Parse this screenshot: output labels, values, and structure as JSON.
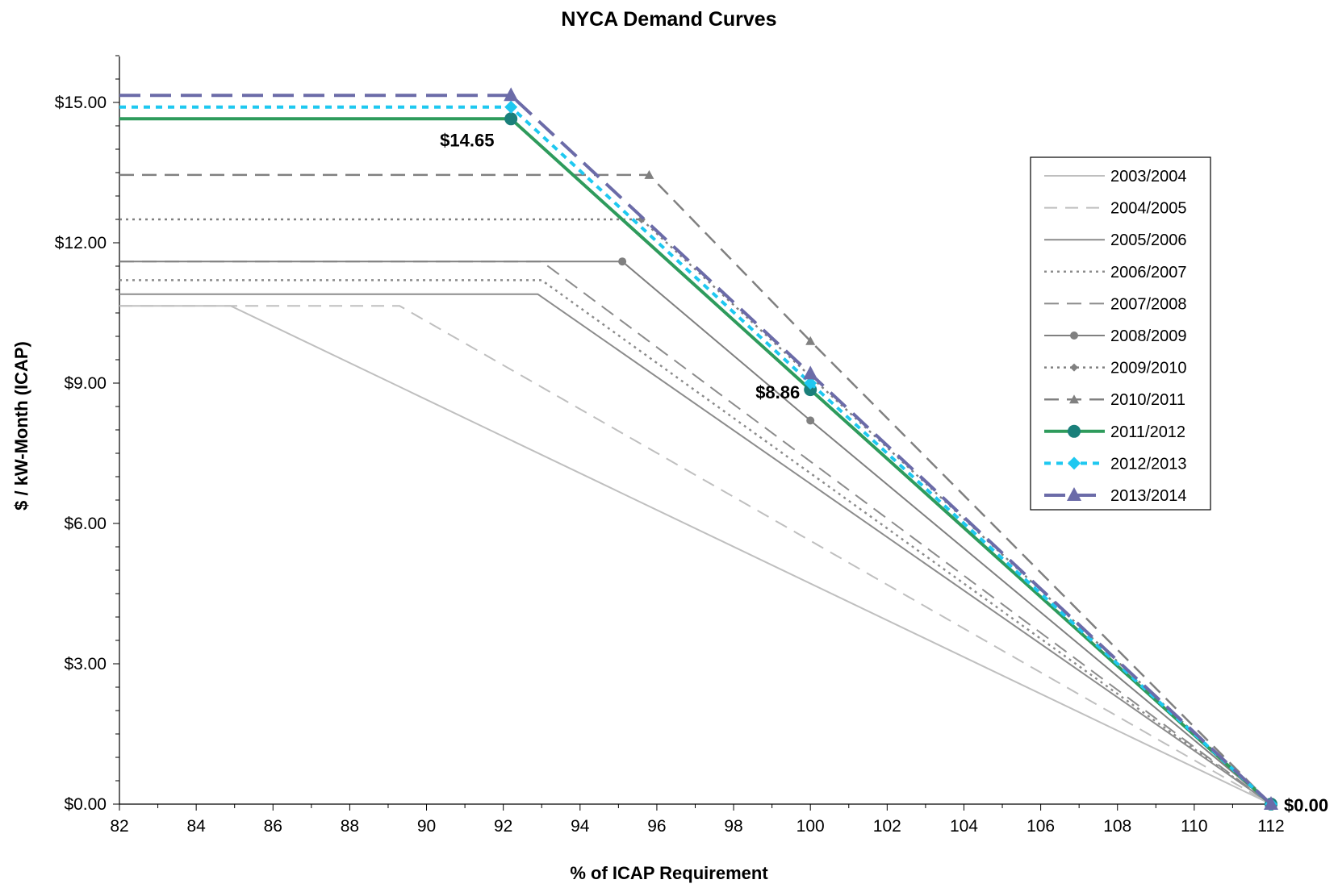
{
  "chart_data": {
    "type": "line",
    "title": "NYCA Demand Curves",
    "xlabel": "% of ICAP Requirement",
    "ylabel": "$ / kW-Month (ICAP)",
    "xlim": [
      82,
      112
    ],
    "ylim": [
      0,
      16
    ],
    "x_ticks": [
      82,
      84,
      86,
      88,
      90,
      92,
      94,
      96,
      98,
      100,
      102,
      104,
      106,
      108,
      110,
      112
    ],
    "x_tick_labels": [
      "82",
      "84",
      "86",
      "88",
      "90",
      "92",
      "94",
      "96",
      "98",
      "100",
      "102",
      "104",
      "106",
      "108",
      "110",
      "112"
    ],
    "y_ticks": [
      0,
      3,
      6,
      9,
      12,
      15
    ],
    "y_tick_labels": [
      "$0.00",
      "$3.00",
      "$6.00",
      "$9.00",
      "$12.00",
      "$15.00"
    ],
    "grid": false,
    "legend_position": "right",
    "series": [
      {
        "name": "2003/2004",
        "color": "#bfbfbf",
        "dash": "",
        "width": 2,
        "marker": "none",
        "points": [
          [
            82,
            10.65
          ],
          [
            84.9,
            10.65
          ],
          [
            112,
            0
          ]
        ]
      },
      {
        "name": "2004/2005",
        "color": "#bfbfbf",
        "dash": "16,10",
        "width": 2,
        "marker": "none",
        "points": [
          [
            82,
            10.65
          ],
          [
            89.3,
            10.65
          ],
          [
            112,
            0
          ]
        ]
      },
      {
        "name": "2005/2006",
        "color": "#8c8c8c",
        "dash": "",
        "width": 2,
        "marker": "none",
        "points": [
          [
            82,
            10.9
          ],
          [
            92.9,
            10.9
          ],
          [
            112,
            0
          ]
        ]
      },
      {
        "name": "2006/2007",
        "color": "#8c8c8c",
        "dash": "3,5",
        "width": 2.5,
        "marker": "none",
        "points": [
          [
            82,
            11.2
          ],
          [
            93.0,
            11.2
          ],
          [
            112,
            0
          ]
        ]
      },
      {
        "name": "2007/2008",
        "color": "#8c8c8c",
        "dash": "18,10",
        "width": 2,
        "marker": "none",
        "points": [
          [
            82,
            11.6
          ],
          [
            93.0,
            11.6
          ],
          [
            112,
            0
          ]
        ]
      },
      {
        "name": "2008/2009",
        "color": "#808080",
        "dash": "",
        "width": 2,
        "marker": "circle",
        "points": [
          [
            82,
            11.6
          ],
          [
            95.1,
            11.6
          ],
          [
            100,
            8.2
          ],
          [
            112,
            0
          ]
        ]
      },
      {
        "name": "2009/2010",
        "color": "#808080",
        "dash": "3,5",
        "width": 2.5,
        "marker": "diamond",
        "points": [
          [
            82,
            12.5
          ],
          [
            95.6,
            12.5
          ],
          [
            112,
            0
          ]
        ]
      },
      {
        "name": "2010/2011",
        "color": "#808080",
        "dash": "18,10",
        "width": 2.5,
        "marker": "triangle",
        "points": [
          [
            82,
            13.45
          ],
          [
            95.8,
            13.45
          ],
          [
            100,
            9.9
          ],
          [
            112,
            0
          ]
        ]
      },
      {
        "name": "2011/2012",
        "color": "#2e9b5c",
        "dash": "",
        "width": 4,
        "marker": "circle-big",
        "markerColor": "#1a7f7a",
        "points": [
          [
            82,
            14.65
          ],
          [
            92.2,
            14.65
          ],
          [
            100,
            8.86
          ],
          [
            112,
            0
          ]
        ]
      },
      {
        "name": "2012/2013",
        "color": "#1ec8f0",
        "dash": "8,7",
        "width": 4,
        "marker": "diamond-big",
        "points": [
          [
            82,
            14.9
          ],
          [
            92.2,
            14.9
          ],
          [
            100,
            9.0
          ],
          [
            112,
            0
          ]
        ]
      },
      {
        "name": "2013/2014",
        "color": "#6b6ba8",
        "dash": "26,12",
        "width": 4,
        "marker": "triangle-big",
        "points": [
          [
            82,
            15.15
          ],
          [
            92.2,
            15.15
          ],
          [
            100,
            9.2
          ],
          [
            112,
            0
          ]
        ]
      }
    ],
    "annotations": [
      {
        "text": "$14.65",
        "x": 92.2,
        "y": 14.65
      },
      {
        "text": "$8.86",
        "x": 100,
        "y": 8.86
      },
      {
        "text": "$0.00",
        "x": 112,
        "y": 0
      }
    ]
  }
}
